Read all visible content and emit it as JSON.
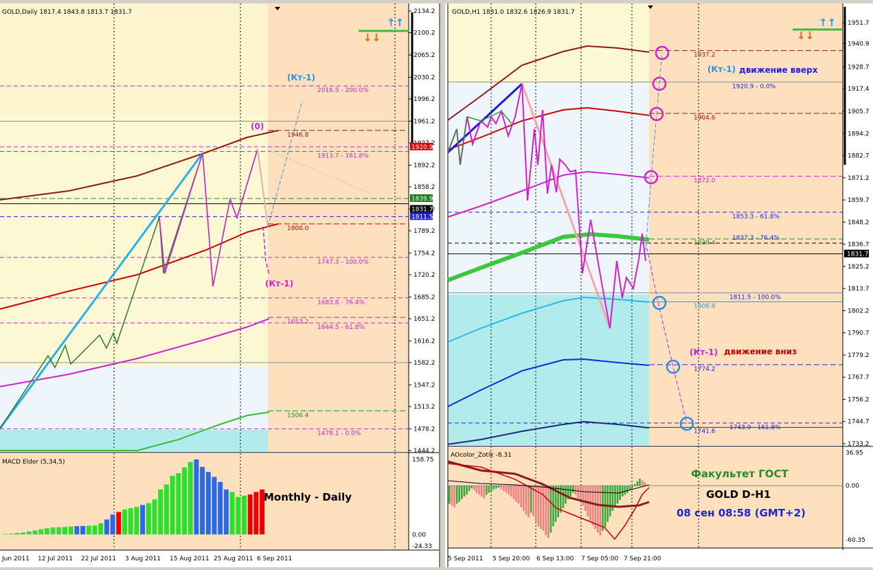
{
  "left": {
    "header": "GOLD,Daily  1817.4 1843.8 1813.7 1831.7",
    "price_ticks": [
      "2134.2",
      "2100.2",
      "2065.2",
      "2030.2",
      "1996.2",
      "1961.2",
      "1927.2",
      "1892.2",
      "1858.2",
      "1823.2",
      "1789.2",
      "1754.2",
      "1720.2",
      "1685.2",
      "1651.2",
      "1616.2",
      "1582.2",
      "1547.2",
      "1513.2",
      "1478.2",
      "1444.2"
    ],
    "price_tags": [
      {
        "text": "1920.9",
        "bg": "#e00000"
      },
      {
        "text": "1839.9",
        "bg": "#1a7f1a"
      },
      {
        "text": "1831.7",
        "bg": "#000000"
      },
      {
        "text": "1811.5",
        "bg": "#1e22d8"
      }
    ],
    "level_labels": [
      {
        "text": "2016.5 - 200.0%",
        "color": "#d020d0"
      },
      {
        "text": "1946.8",
        "color": "#8b1a1a"
      },
      {
        "text": "1913.7 - 161.8%",
        "color": "#d020d0"
      },
      {
        "text": "1800.0",
        "color": "#cc0000"
      },
      {
        "text": "1747.3 - 100.0%",
        "color": "#d020d0"
      },
      {
        "text": "1683.8 - 76.4%",
        "color": "#d020d0"
      },
      {
        "text": "1653.2",
        "color": "#d020d0"
      },
      {
        "text": "1644.5 - 61.8%",
        "color": "#d020d0"
      },
      {
        "text": "1506.4",
        "color": "#2a8a2a"
      },
      {
        "text": "1478.1 - 0.0%",
        "color": "#d020d0"
      }
    ],
    "annotations": {
      "kt_upper": "(Кт-1)",
      "zero": "(0)",
      "kt_lower": "(Кт-1)"
    },
    "macd_title": "MACD Elder (5,34,5)",
    "macd_ticks": [
      "158.75",
      "0.00",
      "-24.33"
    ],
    "macd_caption": "Monthly - Daily",
    "macd_bars": [
      2,
      3,
      6,
      8,
      12,
      16,
      21,
      25,
      28,
      29,
      30,
      32,
      33,
      34,
      35,
      36,
      45,
      60,
      80,
      90,
      100,
      105,
      110,
      118,
      125,
      140,
      180,
      200,
      235,
      245,
      268,
      290,
      300,
      270,
      250,
      230,
      210,
      180,
      170,
      150,
      155,
      160,
      170,
      180
    ],
    "dates": [
      "Jun 2011",
      "12 Jul 2011",
      "22 Jul 2011",
      "3 Aug 2011",
      "15 Aug 2011",
      "25 Aug 2011",
      "6 Sep 2011"
    ]
  },
  "right": {
    "header": "GOLD,H1  1831.0 1832.6 1826.9 1831.7",
    "price_ticks": [
      "1951.7",
      "1940.9",
      "1928.7",
      "1917.4",
      "1905.7",
      "1894.2",
      "1882.7",
      "1871.2",
      "1859.7",
      "1848.2",
      "1836.7",
      "1825.2",
      "1813.7",
      "1802.2",
      "1790.7",
      "1779.2",
      "1767.7",
      "1756.2",
      "1744.7",
      "1733.2"
    ],
    "price_tag": {
      "text": "1831.7",
      "bg": "#000000"
    },
    "level_labels": [
      {
        "text": "1937.2",
        "color": "#8b1a1a"
      },
      {
        "text": "1920.9 - 0.0%",
        "color": "#1e22d8"
      },
      {
        "text": "1904.6",
        "color": "#cc0000"
      },
      {
        "text": "1872.0",
        "color": "#d020d0"
      },
      {
        "text": "1853.3 - 61.8%",
        "color": "#1e22d8"
      },
      {
        "text": "1839.4",
        "color": "#2a8a2a"
      },
      {
        "text": "1837.3 - 76.4%",
        "color": "#1e22d8"
      },
      {
        "text": "1811.5 - 100.0%",
        "color": "#1e22d8"
      },
      {
        "text": "1806.8",
        "color": "#2a9ad8"
      },
      {
        "text": "1774.2",
        "color": "#1e22d8"
      },
      {
        "text": "1743.9 - 161.8%",
        "color": "#1e22d8"
      },
      {
        "text": "1741.6",
        "color": "#1e22d8"
      }
    ],
    "annotations": {
      "kt_up": "(Кт-1)",
      "move_up": "движение вверх",
      "kt_down": "(Кт-1)",
      "move_down": "движение вниз"
    },
    "ao_title": "AOcolor_Zotik -8.31",
    "ao_ticks": [
      "36.95",
      "0.00",
      "-60.35"
    ],
    "info": {
      "faculty": "Факультет ГОСТ",
      "symbol": "GOLD   D-H1",
      "time": "08 сен 08:58 (GMT+2)"
    },
    "ao_bars": [
      -20,
      -22,
      -24,
      -20,
      -18,
      -15,
      -12,
      -10,
      -6,
      -3,
      -5,
      -8,
      -10,
      -12,
      -14,
      -10,
      -8,
      -6,
      -4,
      -3,
      -2,
      -4,
      -6,
      -8,
      -10,
      -12,
      -15,
      -18,
      -20,
      -24,
      -28,
      -32,
      -35,
      -30,
      -34,
      -40,
      -45,
      -48,
      -50,
      -55,
      -58,
      -52,
      -45,
      -40,
      -35,
      -30,
      -25,
      -20,
      -15,
      -12,
      -8,
      -10,
      -14,
      -18,
      -22,
      -28,
      -34,
      -40,
      -44,
      -48,
      -52,
      -55,
      -50,
      -46,
      -40,
      -34,
      -28,
      -24,
      -20,
      -16,
      -12,
      -10,
      -8,
      -5,
      -2,
      2,
      5,
      8,
      6,
      4
    ],
    "dates": [
      "5 Sep 2011",
      "5 Sep 20:00",
      "6 Sep 13:00",
      "7 Sep 05:00",
      "7 Sep 21:00"
    ]
  },
  "chart_data": [
    {
      "type": "line",
      "title": "GOLD,Daily",
      "ylim": [
        1444.2,
        2134.2
      ],
      "levels": [
        2016.5,
        1946.8,
        1920.9,
        1913.7,
        1839.9,
        1831.7,
        1811.5,
        1800.0,
        1747.3,
        1683.8,
        1653.2,
        1644.5,
        1506.4,
        1478.1
      ]
    },
    {
      "type": "bar",
      "title": "MACD Elder (5,34,5)",
      "ylim": [
        -24.33,
        158.75
      ]
    },
    {
      "type": "line",
      "title": "GOLD,H1",
      "ylim": [
        1733.2,
        1951.7
      ],
      "levels": [
        1937.2,
        1920.9,
        1904.6,
        1872.0,
        1853.3,
        1839.4,
        1837.3,
        1831.7,
        1811.5,
        1806.8,
        1774.2,
        1743.9,
        1741.6
      ]
    },
    {
      "type": "bar",
      "title": "AOcolor_Zotik -8.31",
      "ylim": [
        -60.35,
        36.95
      ]
    }
  ]
}
